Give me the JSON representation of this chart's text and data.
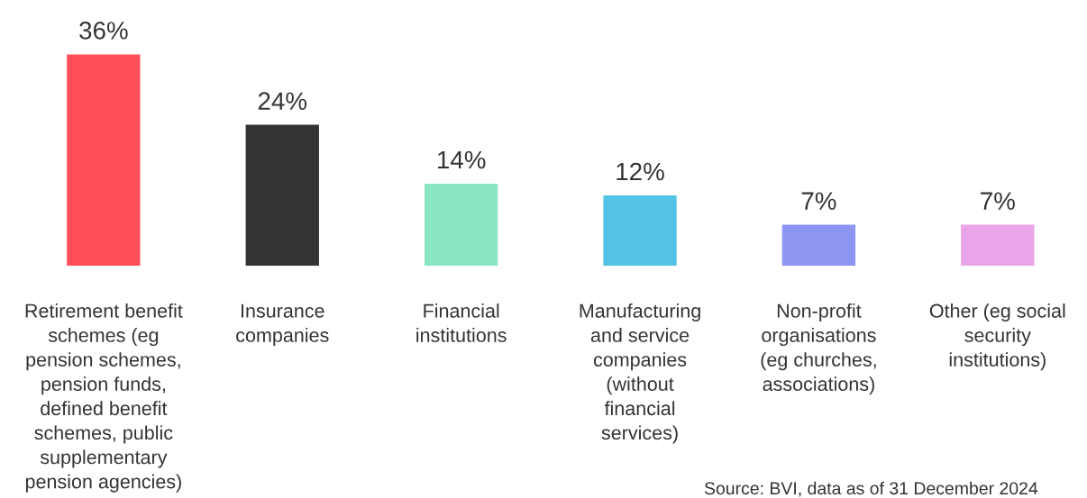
{
  "chart_data": {
    "type": "bar",
    "categories": [
      "Retirement benefit\nschemes (eg\npension schemes,\npension funds,\ndefined benefit\nschemes, public\nsupplementary\npension agencies)",
      "Insurance\ncompanies",
      "Financial\ninstitutions",
      "Manufacturing\nand service\ncompanies\n(without\nfinancial\nservices)",
      "Non-profit\norganisations\n(eg churches,\nassociations)",
      "Other (eg social\nsecurity\ninstitutions)"
    ],
    "values": [
      36,
      24,
      14,
      12,
      7,
      7
    ],
    "value_labels": [
      "36%",
      "24%",
      "14%",
      "12%",
      "7%",
      "7%"
    ],
    "colors": [
      "#ff4f5a",
      "#333333",
      "#8ae6c2",
      "#55c3e6",
      "#8c95f2",
      "#eaa4e8"
    ],
    "annotations": [
      "Source: BVI, data as of 31 December 2024"
    ]
  }
}
